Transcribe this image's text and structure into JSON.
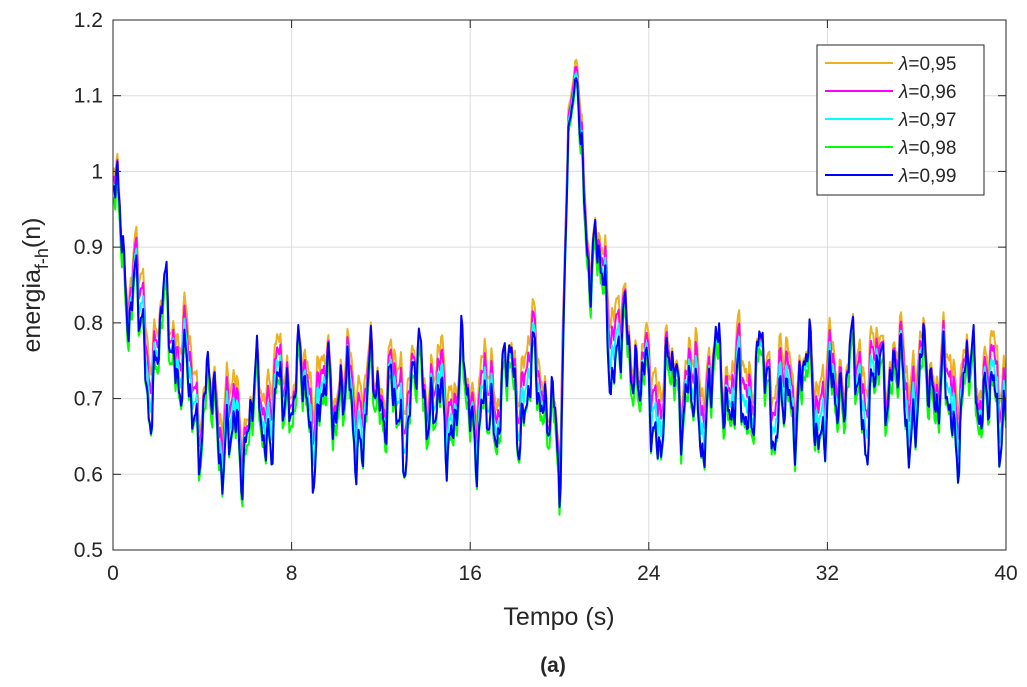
{
  "chart_data": {
    "type": "line",
    "xlabel": "Tempo (s)",
    "ylabel_main": "energia",
    "ylabel_sub": "f-h",
    "ylabel_tail": "(n)",
    "caption": "(a)",
    "xlim": [
      0,
      40
    ],
    "ylim": [
      0.5,
      1.2
    ],
    "xticks": [
      0,
      8,
      16,
      24,
      32,
      40
    ],
    "xtick_labels": [
      "0",
      "8",
      "16",
      "24",
      "32",
      "40"
    ],
    "yticks": [
      0.5,
      0.6,
      0.7,
      0.8,
      0.9,
      1.0,
      1.1,
      1.2
    ],
    "ytick_labels": [
      "0.5",
      "0.6",
      "0.7",
      "0.8",
      "0.9",
      "1",
      "1.1",
      "1.2"
    ],
    "grid": true,
    "legend_position": "top-right",
    "legend_symbol": "λ",
    "series": [
      {
        "name": "=0,95",
        "color": "#EDB120"
      },
      {
        "name": "=0,96",
        "color": "#FF00FF"
      },
      {
        "name": "=0,97",
        "color": "#00FFFF"
      },
      {
        "name": "=0,98",
        "color": "#00FF00"
      },
      {
        "name": "=0,99",
        "color": "#0000FF"
      }
    ],
    "base_profile": {
      "x": [
        0,
        0.2,
        0.5,
        1.0,
        1.5,
        2.5,
        3.5,
        4.0,
        5.0,
        6.0,
        7.0,
        8.0,
        10.0,
        12.0,
        14.0,
        16.0,
        18.0,
        19.0,
        19.5,
        20.0,
        20.4,
        20.8,
        21.2,
        22.0,
        23.0,
        24.0,
        26.0,
        28.0,
        30.0,
        32.0,
        34.0,
        36.0,
        38.0,
        40.0
      ],
      "y": [
        0.92,
        0.95,
        0.82,
        0.86,
        0.74,
        0.78,
        0.72,
        0.66,
        0.67,
        0.64,
        0.7,
        0.7,
        0.69,
        0.69,
        0.7,
        0.68,
        0.7,
        0.74,
        0.66,
        0.58,
        1.07,
        1.11,
        0.9,
        0.83,
        0.75,
        0.7,
        0.7,
        0.71,
        0.7,
        0.7,
        0.72,
        0.71,
        0.7,
        0.71
      ]
    },
    "series_level_offsets": [
      0.04,
      0.025,
      0.01,
      -0.012,
      0.0
    ],
    "noise_amplitude": 0.06,
    "step": 0.05
  }
}
